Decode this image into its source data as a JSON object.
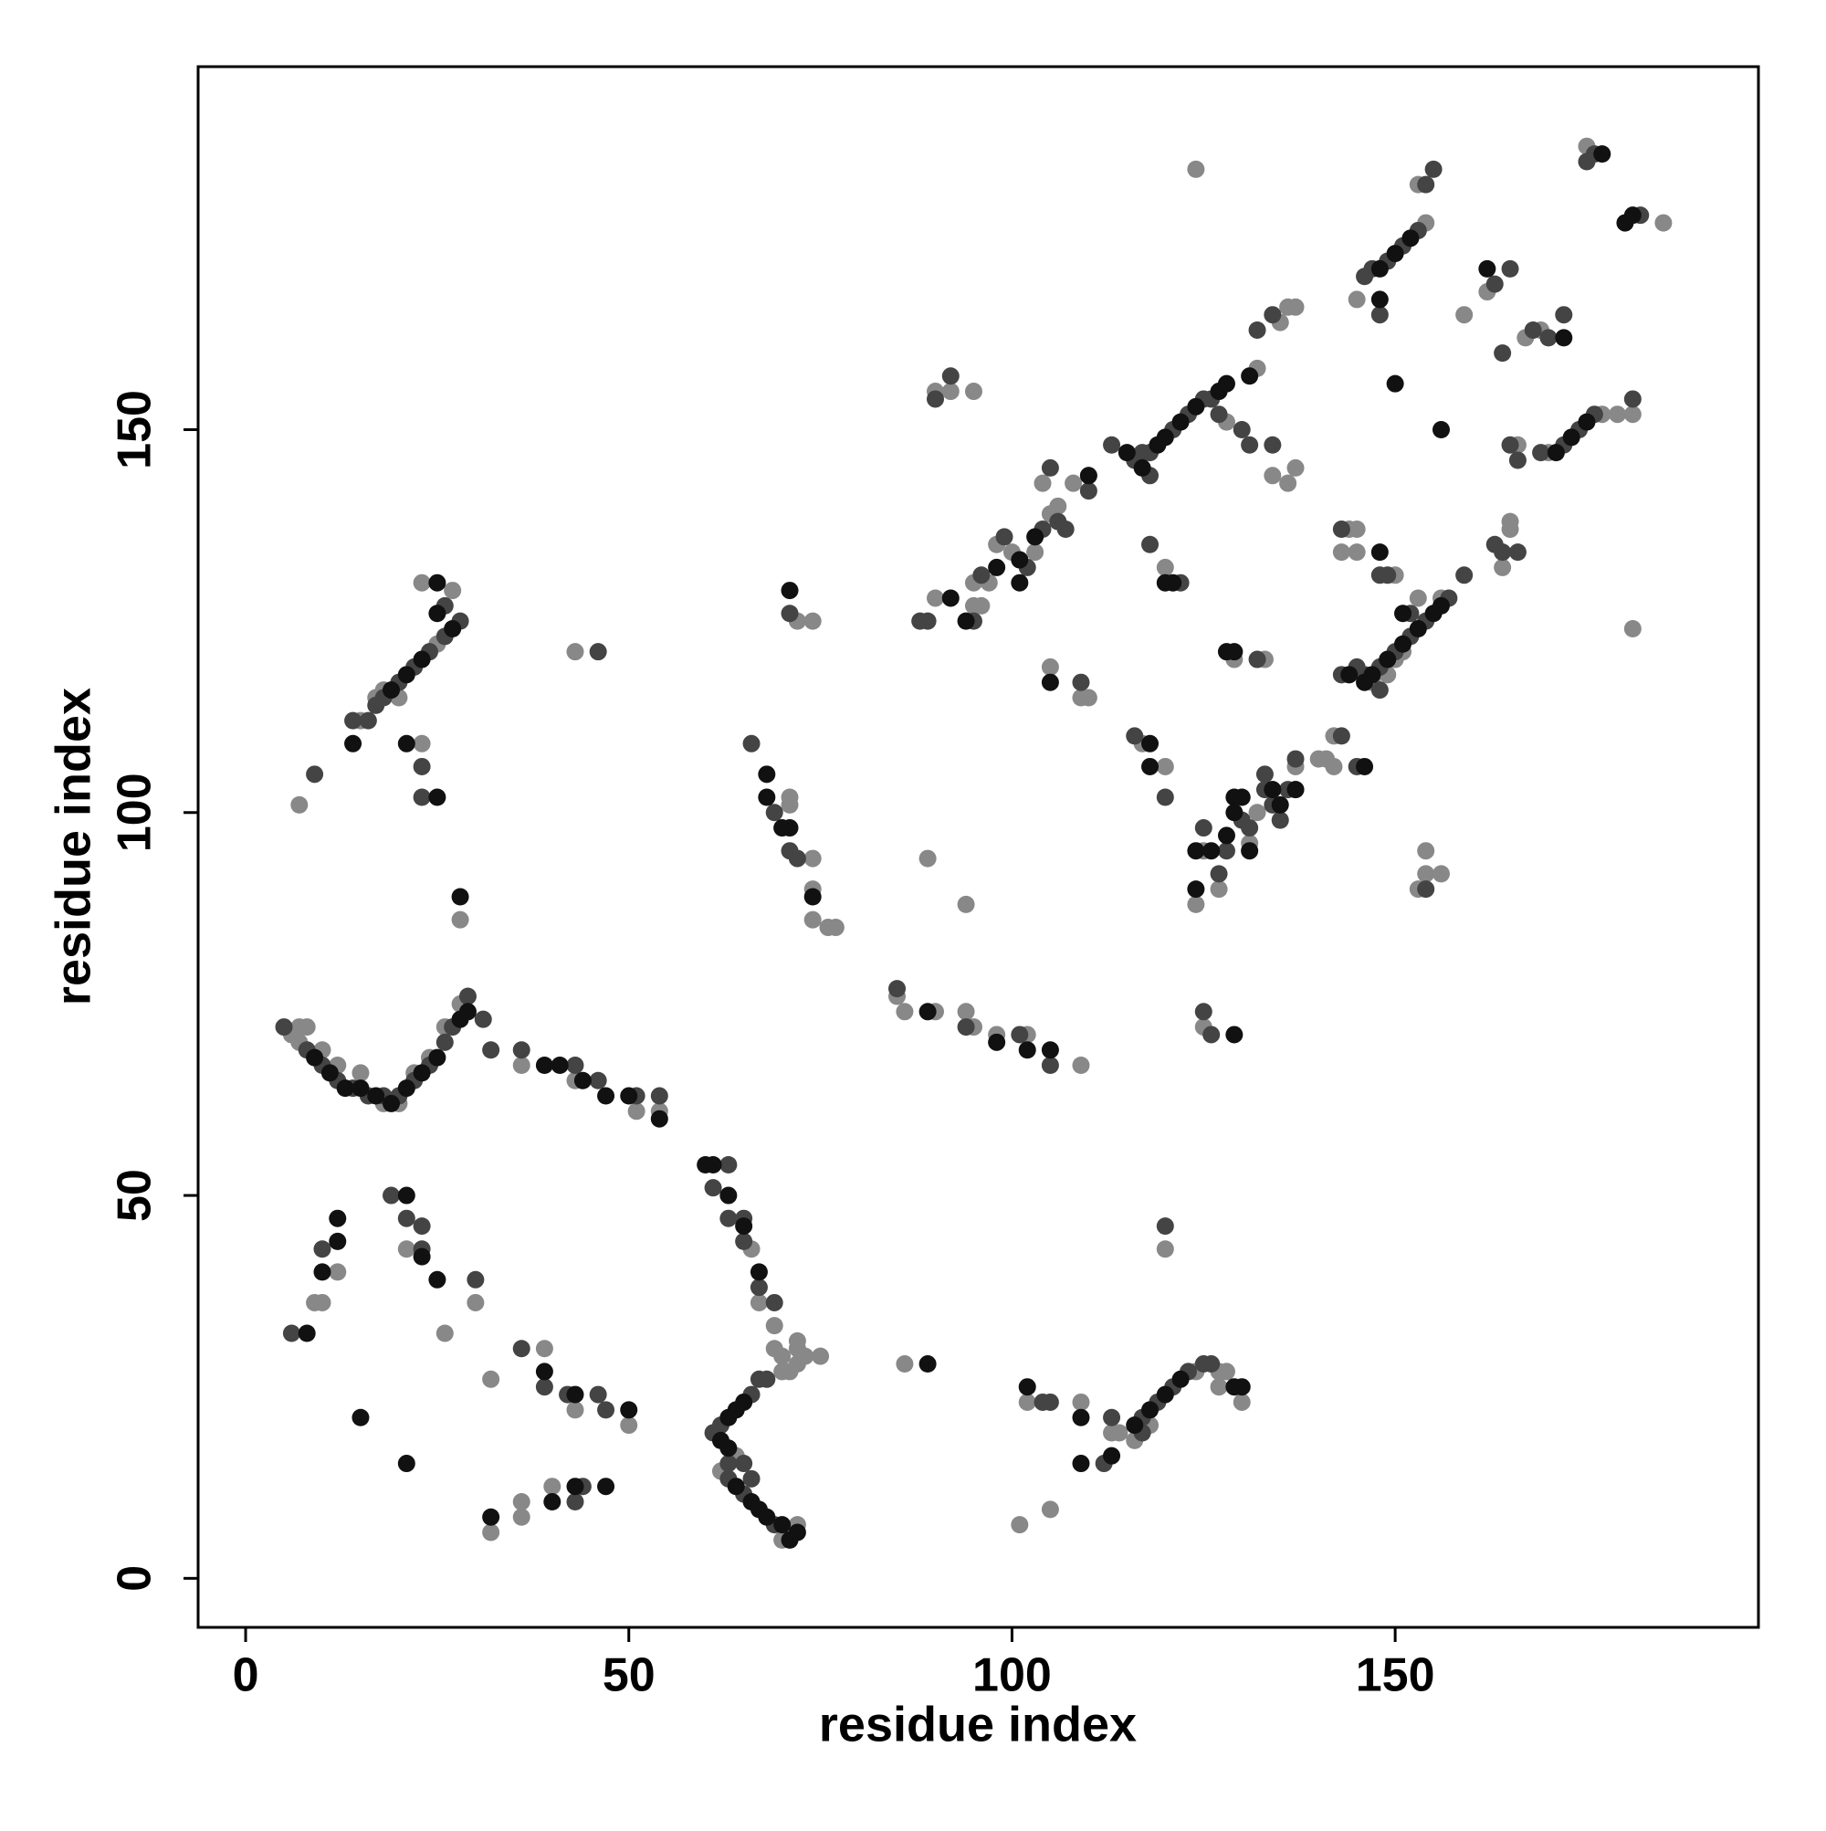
{
  "chart_data": {
    "type": "scatter",
    "xlabel": "residue index",
    "ylabel": "residue index",
    "xlim": [
      -6.2,
      197.4
    ],
    "ylim": [
      -6.4,
      197.4
    ],
    "xticks": [
      0,
      50,
      100,
      150
    ],
    "yticks": [
      0,
      50,
      100,
      150
    ],
    "grid": false,
    "series": [
      {
        "color": "#888888",
        "x": [
          9,
          10,
          12,
          21,
          26,
          30,
          32,
          32,
          36,
          36,
          39,
          40,
          43,
          50,
          15,
          17,
          18,
          20,
          25,
          27,
          23,
          23,
          7,
          28,
          43,
          6,
          7,
          7,
          8,
          10,
          12,
          15,
          18,
          20,
          22,
          24,
          26,
          28,
          36,
          43,
          51,
          54,
          66,
          67,
          69,
          69,
          70,
          72,
          72,
          73,
          75,
          70,
          71,
          72,
          62,
          64,
          71,
          72,
          70,
          71,
          71,
          74,
          74,
          74,
          76,
          77,
          72,
          74,
          85,
          86,
          90,
          94,
          95,
          98,
          102,
          109,
          89,
          94,
          86,
          101,
          105,
          90,
          92,
          95,
          102,
          109,
          113,
          114,
          116,
          118,
          124,
          127,
          128,
          127,
          130,
          120,
          90,
          95,
          95,
          97,
          98,
          100,
          103,
          104,
          105,
          106,
          108,
          110,
          124,
          96,
          128,
          132,
          135,
          136,
          137,
          134,
          136,
          137,
          105,
          110,
          109,
          117,
          120,
          120,
          124,
          125,
          127,
          131,
          132,
          134,
          137,
          137,
          125,
          129,
          133,
          140,
          141,
          142,
          142,
          143,
          144,
          145,
          145,
          147,
          149,
          150,
          151,
          150,
          153,
          156,
          153,
          154,
          154,
          156,
          145,
          154,
          153,
          159,
          162,
          167,
          169,
          165,
          165,
          164,
          170,
          175,
          177,
          179,
          181,
          181,
          185,
          166
        ],
        "values": [
          36,
          36,
          40,
          43,
          32,
          36,
          26,
          6,
          10,
          8,
          30,
          12,
          22,
          20,
          112,
          115,
          116,
          115,
          122,
          129,
          130,
          109,
          101,
          86,
          121,
          71,
          70,
          72,
          72,
          69,
          67,
          66,
          62,
          62,
          66,
          68,
          72,
          75,
          67,
          65,
          61,
          61,
          43,
          36,
          33,
          30,
          29,
          30,
          31,
          29,
          29,
          27,
          27,
          28,
          14,
          16,
          6,
          7,
          5,
          102,
          101,
          94,
          90,
          86,
          85,
          85,
          125,
          125,
          76,
          74,
          74,
          74,
          72,
          71,
          71,
          67,
          94,
          88,
          28,
          7,
          9,
          155,
          155,
          155,
          23,
          23,
          19,
          19,
          18,
          20,
          27,
          27,
          27,
          25,
          23,
          43,
          128,
          127,
          130,
          130,
          135,
          134,
          134,
          143,
          139,
          140,
          143,
          144,
          184,
          127,
          151,
          158,
          164,
          166,
          166,
          144,
          143,
          145,
          119,
          115,
          115,
          109,
          106,
          132,
          88,
          95,
          90,
          96,
          100,
          103,
          103,
          106,
          72,
          120,
          120,
          107,
          107,
          106,
          110,
          134,
          137,
          137,
          134,
          117,
          118,
          120,
          121,
          131,
          128,
          128,
          90,
          92,
          95,
          92,
          167,
          177,
          182,
          165,
          168,
          162,
          163,
          138,
          137,
          132,
          147,
          187,
          152,
          152,
          152,
          124,
          177,
          148
        ]
      },
      {
        "color": "#444444",
        "x": [
          6,
          10,
          19,
          21,
          23,
          23,
          30,
          36,
          39,
          42,
          43,
          44,
          46,
          47,
          14,
          16,
          17,
          18,
          20,
          22,
          24,
          26,
          28,
          26,
          23,
          23,
          9,
          46,
          5,
          8,
          10,
          12,
          14,
          16,
          18,
          20,
          22,
          24,
          26,
          27,
          29,
          31,
          32,
          36,
          43,
          46,
          51,
          54,
          63,
          61,
          63,
          65,
          65,
          67,
          69,
          68,
          67,
          66,
          62,
          61,
          63,
          63,
          65,
          69,
          66,
          65,
          66,
          69,
          71,
          71,
          72,
          94,
          101,
          105,
          104,
          105,
          113,
          112,
          117,
          119,
          121,
          123,
          125,
          126,
          117,
          120,
          88,
          89,
          95,
          96,
          99,
          102,
          104,
          105,
          106,
          107,
          110,
          113,
          116,
          118,
          121,
          123,
          125,
          126,
          127,
          130,
          131,
          132,
          134,
          134,
          109,
          116,
          120,
          118,
          122,
          90,
          92,
          125,
          127,
          128,
          130,
          131,
          133,
          133,
          134,
          135,
          136,
          137,
          125,
          126,
          132,
          143,
          143,
          145,
          143,
          145,
          148,
          150,
          152,
          154,
          157,
          159,
          148,
          149,
          152,
          148,
          146,
          154,
          146,
          147,
          149,
          151,
          153,
          148,
          154,
          155,
          163,
          165,
          164,
          164,
          165,
          166,
          168,
          170,
          172,
          172,
          174,
          176,
          169,
          175,
          176,
          182,
          181,
          117,
          118,
          163,
          166,
          85
        ],
        "values": [
          32,
          43,
          50,
          47,
          46,
          43,
          39,
          30,
          25,
          24,
          10,
          12,
          24,
          22,
          112,
          112,
          114,
          115,
          117,
          119,
          121,
          123,
          125,
          127,
          106,
          102,
          105,
          121,
          72,
          69,
          67,
          65,
          64,
          63,
          63,
          63,
          65,
          67,
          70,
          72,
          76,
          73,
          69,
          69,
          67,
          65,
          63,
          63,
          54,
          51,
          47,
          47,
          44,
          38,
          36,
          26,
          26,
          24,
          20,
          19,
          15,
          13,
          11,
          7,
          13,
          15,
          109,
          100,
          95,
          126,
          94,
          72,
          71,
          67,
          23,
          23,
          21,
          15,
          21,
          23,
          25,
          27,
          28,
          28,
          19,
          46,
          125,
          125,
          125,
          131,
          136,
          132,
          137,
          145,
          138,
          137,
          142,
          148,
          146,
          147,
          150,
          152,
          154,
          154,
          152,
          150,
          148,
          163,
          165,
          148,
          117,
          110,
          102,
          135,
          130,
          154,
          157,
          98,
          92,
          95,
          99,
          98,
          103,
          105,
          101,
          99,
          103,
          107,
          74,
          71,
          120,
          110,
          137,
          106,
          118,
          119,
          119,
          121,
          123,
          125,
          128,
          131,
          131,
          131,
          126,
          116,
          118,
          90,
          170,
          171,
          172,
          174,
          176,
          165,
          182,
          184,
          169,
          171,
          160,
          134,
          148,
          146,
          163,
          162,
          165,
          148,
          150,
          152,
          147,
          185,
          186,
          178,
          154,
          147,
          144,
          135,
          134,
          77
        ]
      },
      {
        "color": "#111111",
        "x": [
          8,
          10,
          12,
          12,
          15,
          21,
          21,
          23,
          25,
          32,
          39,
          40,
          43,
          43,
          47,
          50,
          14,
          21,
          25,
          28,
          19,
          21,
          23,
          25,
          25,
          27,
          9,
          11,
          13,
          15,
          17,
          19,
          21,
          23,
          25,
          28,
          29,
          39,
          41,
          44,
          47,
          50,
          54,
          60,
          61,
          63,
          65,
          67,
          65,
          64,
          63,
          62,
          63,
          64,
          66,
          67,
          68,
          70,
          72,
          71,
          68,
          68,
          70,
          71,
          74,
          71,
          89,
          98,
          102,
          105,
          89,
          102,
          109,
          109,
          113,
          116,
          118,
          120,
          122,
          129,
          130,
          92,
          94,
          98,
          101,
          101,
          103,
          105,
          110,
          115,
          117,
          119,
          120,
          122,
          127,
          128,
          131,
          118,
          118,
          120,
          121,
          124,
          124,
          126,
          128,
          129,
          129,
          130,
          131,
          134,
          135,
          137,
          129,
          128,
          129,
          146,
          144,
          146,
          147,
          149,
          151,
          153,
          155,
          156,
          148,
          151,
          156,
          150,
          148,
          148,
          150,
          152,
          162,
          172,
          171,
          173,
          175,
          177,
          180,
          181,
          124
        ],
        "values": [
          32,
          40,
          44,
          47,
          21,
          50,
          15,
          42,
          39,
          8,
          27,
          10,
          24,
          12,
          12,
          22,
          109,
          109,
          102,
          89,
          116,
          118,
          120,
          126,
          130,
          124,
          68,
          66,
          64,
          64,
          63,
          62,
          64,
          66,
          68,
          73,
          74,
          67,
          67,
          65,
          63,
          63,
          60,
          54,
          54,
          50,
          46,
          40,
          23,
          22,
          21,
          18,
          17,
          12,
          10,
          9,
          8,
          7,
          6,
          5,
          105,
          102,
          98,
          98,
          89,
          129,
          74,
          70,
          69,
          69,
          28,
          25,
          21,
          15,
          16,
          20,
          22,
          24,
          26,
          25,
          25,
          128,
          125,
          132,
          133,
          130,
          136,
          117,
          144,
          147,
          145,
          148,
          149,
          151,
          155,
          156,
          157,
          109,
          106,
          130,
          130,
          95,
          90,
          95,
          97,
          100,
          102,
          102,
          95,
          103,
          101,
          103,
          71,
          121,
          121,
          106,
          118,
          117,
          118,
          120,
          122,
          124,
          126,
          127,
          134,
          126,
          150,
          156,
          167,
          171,
          173,
          175,
          171,
          162,
          147,
          149,
          151,
          186,
          177,
          178,
          153
        ]
      }
    ]
  }
}
